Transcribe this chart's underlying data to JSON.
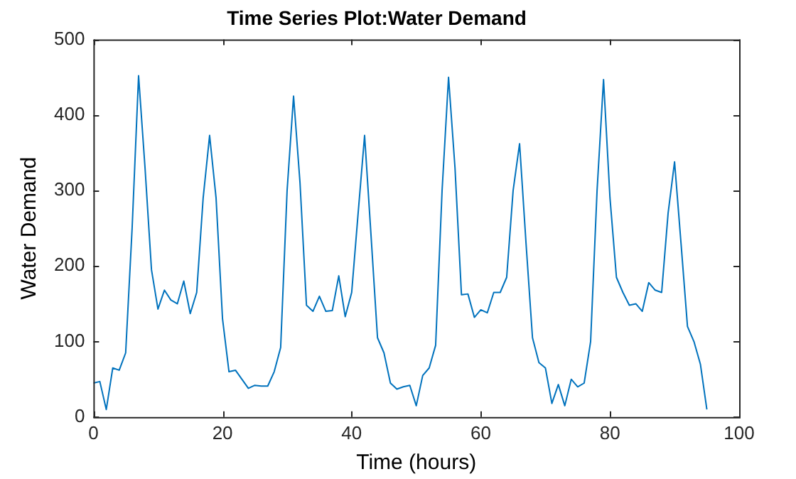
{
  "chart_data": {
    "type": "line",
    "title": "Time Series Plot:Water Demand",
    "xlabel": "Time (hours)",
    "ylabel": "Water Demand",
    "x": [
      0,
      1,
      2,
      3,
      4,
      5,
      6,
      7,
      8,
      9,
      10,
      11,
      12,
      13,
      14,
      15,
      16,
      17,
      18,
      19,
      20,
      21,
      22,
      23,
      24,
      25,
      26,
      27,
      28,
      29,
      30,
      31,
      32,
      33,
      34,
      35,
      36,
      37,
      38,
      39,
      40,
      41,
      42,
      43,
      44,
      45,
      46,
      47,
      48,
      49,
      50,
      51,
      52,
      53,
      54,
      55,
      56,
      57,
      58,
      59,
      60,
      61,
      62,
      63,
      64,
      65,
      66,
      67,
      68,
      69,
      70,
      71,
      72,
      73,
      74,
      75,
      76,
      77,
      78,
      79,
      80,
      81,
      82,
      83,
      84,
      85,
      86,
      87,
      88,
      89,
      90,
      91,
      92,
      93,
      94,
      95
    ],
    "series": [
      {
        "color": "#0072bd",
        "values": [
          45,
          47,
          10,
          65,
          62,
          85,
          250,
          452,
          330,
          195,
          143,
          168,
          155,
          150,
          180,
          137,
          165,
          290,
          373,
          290,
          130,
          60,
          62,
          50,
          38,
          42,
          41,
          41,
          60,
          92,
          300,
          425,
          310,
          148,
          140,
          160,
          140,
          141,
          187,
          133,
          165,
          270,
          373,
          240,
          105,
          85,
          45,
          37,
          40,
          42,
          15,
          55,
          65,
          95,
          300,
          450,
          330,
          162,
          163,
          132,
          142,
          138,
          165,
          165,
          185,
          300,
          362,
          230,
          105,
          72,
          65,
          18,
          43,
          15,
          50,
          40,
          45,
          100,
          300,
          447,
          290,
          185,
          165,
          148,
          150,
          140,
          178,
          168,
          165,
          270,
          338,
          230,
          120,
          100,
          70,
          10
        ]
      }
    ],
    "xlim": [
      0,
      100
    ],
    "xticks": [
      0,
      20,
      40,
      60,
      80,
      100
    ],
    "ylim": [
      0,
      500
    ],
    "yticks": [
      0,
      100,
      200,
      300,
      400,
      500
    ],
    "grid": false,
    "legend": false,
    "marker": "none",
    "line_style": "solid"
  }
}
